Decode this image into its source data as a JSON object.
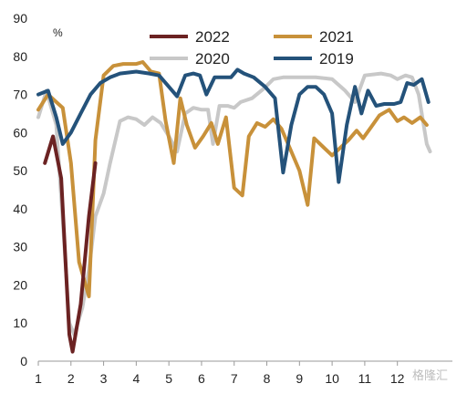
{
  "chart_data": {
    "type": "line",
    "title": "",
    "xlabel": "",
    "ylabel": "",
    "unit": "%",
    "xlim": [
      1,
      13
    ],
    "ylim": [
      0,
      90
    ],
    "x_ticks": [
      1,
      2,
      3,
      4,
      5,
      6,
      7,
      8,
      9,
      10,
      11,
      12
    ],
    "x_tick_labels": [
      "1",
      "2",
      "3",
      "4",
      "5",
      "6",
      "7",
      "8",
      "9",
      "10",
      "11",
      "12"
    ],
    "y_ticks": [
      0,
      10,
      20,
      30,
      40,
      50,
      60,
      70,
      80,
      90
    ],
    "y_tick_labels": [
      "0",
      "10",
      "20",
      "30",
      "40",
      "50",
      "60",
      "70",
      "80",
      "90"
    ],
    "legend_position": "top",
    "series": [
      {
        "name": "2022",
        "color": "#6b2222",
        "points": [
          [
            1.2,
            52
          ],
          [
            1.45,
            59
          ],
          [
            1.7,
            48
          ],
          [
            1.95,
            7
          ],
          [
            2.05,
            2.5
          ],
          [
            2.3,
            15
          ],
          [
            2.55,
            38
          ],
          [
            2.75,
            52
          ]
        ]
      },
      {
        "name": "2021",
        "color": "#c8913a",
        "points": [
          [
            1.0,
            66
          ],
          [
            1.3,
            70
          ],
          [
            1.55,
            68
          ],
          [
            1.75,
            66.5
          ],
          [
            2.0,
            52
          ],
          [
            2.25,
            26
          ],
          [
            2.55,
            17
          ],
          [
            2.75,
            58
          ],
          [
            3.0,
            75
          ],
          [
            3.3,
            77.5
          ],
          [
            3.6,
            78
          ],
          [
            4.0,
            78
          ],
          [
            4.2,
            78.5
          ],
          [
            4.45,
            76
          ],
          [
            4.7,
            75.5
          ],
          [
            4.9,
            63
          ],
          [
            5.15,
            52
          ],
          [
            5.35,
            69
          ],
          [
            5.55,
            62
          ],
          [
            5.8,
            56
          ],
          [
            6.05,
            59
          ],
          [
            6.3,
            62.5
          ],
          [
            6.5,
            57
          ],
          [
            6.75,
            64
          ],
          [
            7.0,
            45.5
          ],
          [
            7.25,
            43.5
          ],
          [
            7.45,
            59
          ],
          [
            7.7,
            62.5
          ],
          [
            7.95,
            61.5
          ],
          [
            8.2,
            63.5
          ],
          [
            8.45,
            61
          ],
          [
            8.7,
            56
          ],
          [
            9.0,
            50
          ],
          [
            9.25,
            41
          ],
          [
            9.45,
            58.5
          ],
          [
            9.75,
            56
          ],
          [
            10.0,
            54
          ],
          [
            10.25,
            56
          ],
          [
            10.5,
            58
          ],
          [
            10.75,
            60.5
          ],
          [
            10.95,
            58.5
          ],
          [
            11.2,
            61.5
          ],
          [
            11.45,
            64.5
          ],
          [
            11.75,
            66
          ],
          [
            12.0,
            63
          ],
          [
            12.2,
            64
          ],
          [
            12.45,
            62.5
          ],
          [
            12.7,
            64
          ],
          [
            12.9,
            62
          ]
        ]
      },
      {
        "name": "2020",
        "color": "#c8c8c8",
        "points": [
          [
            1.0,
            64
          ],
          [
            1.25,
            71
          ],
          [
            1.55,
            62
          ],
          [
            1.75,
            37
          ],
          [
            1.95,
            10
          ],
          [
            2.1,
            7
          ],
          [
            2.35,
            14
          ],
          [
            2.55,
            24
          ],
          [
            2.75,
            38
          ],
          [
            3.0,
            44
          ],
          [
            3.2,
            52
          ],
          [
            3.5,
            63
          ],
          [
            3.75,
            64
          ],
          [
            4.0,
            63.5
          ],
          [
            4.25,
            62
          ],
          [
            4.5,
            64
          ],
          [
            4.75,
            62.5
          ],
          [
            5.0,
            59
          ],
          [
            5.25,
            55
          ],
          [
            5.5,
            65
          ],
          [
            5.75,
            66.5
          ],
          [
            6.0,
            66
          ],
          [
            6.2,
            66
          ],
          [
            6.35,
            57
          ],
          [
            6.55,
            67
          ],
          [
            6.8,
            67
          ],
          [
            7.0,
            66.5
          ],
          [
            7.2,
            68
          ],
          [
            7.55,
            69
          ],
          [
            7.9,
            71.5
          ],
          [
            8.2,
            74
          ],
          [
            8.5,
            74.5
          ],
          [
            9.0,
            74.5
          ],
          [
            9.5,
            74.5
          ],
          [
            10.0,
            74
          ],
          [
            10.4,
            71
          ],
          [
            10.7,
            68
          ],
          [
            11.0,
            75
          ],
          [
            11.5,
            75.5
          ],
          [
            11.8,
            75
          ],
          [
            12.0,
            74
          ],
          [
            12.25,
            75
          ],
          [
            12.45,
            74.5
          ],
          [
            12.65,
            70
          ],
          [
            12.9,
            57
          ],
          [
            13.0,
            55
          ]
        ]
      },
      {
        "name": "2019",
        "color": "#24527a",
        "points": [
          [
            1.0,
            70
          ],
          [
            1.3,
            71
          ],
          [
            1.55,
            64
          ],
          [
            1.75,
            57
          ],
          [
            2.0,
            60
          ],
          [
            2.3,
            65
          ],
          [
            2.6,
            70
          ],
          [
            2.9,
            73
          ],
          [
            3.2,
            74.5
          ],
          [
            3.5,
            75.5
          ],
          [
            4.0,
            76
          ],
          [
            4.4,
            75.5
          ],
          [
            4.7,
            75
          ],
          [
            5.0,
            72
          ],
          [
            5.25,
            69.5
          ],
          [
            5.5,
            75
          ],
          [
            5.75,
            75.5
          ],
          [
            5.95,
            75
          ],
          [
            6.15,
            70
          ],
          [
            6.4,
            74.5
          ],
          [
            6.65,
            74.5
          ],
          [
            6.9,
            74.5
          ],
          [
            7.1,
            76.5
          ],
          [
            7.3,
            75.5
          ],
          [
            7.6,
            74.5
          ],
          [
            7.95,
            72
          ],
          [
            8.25,
            69
          ],
          [
            8.5,
            49.5
          ],
          [
            8.75,
            62
          ],
          [
            9.0,
            70
          ],
          [
            9.25,
            72
          ],
          [
            9.5,
            72
          ],
          [
            9.75,
            70
          ],
          [
            10.0,
            65
          ],
          [
            10.2,
            47
          ],
          [
            10.45,
            62
          ],
          [
            10.7,
            72
          ],
          [
            10.9,
            65
          ],
          [
            11.1,
            71
          ],
          [
            11.35,
            67
          ],
          [
            11.6,
            67.5
          ],
          [
            11.9,
            67.5
          ],
          [
            12.1,
            68
          ],
          [
            12.3,
            73
          ],
          [
            12.5,
            72.5
          ],
          [
            12.75,
            74
          ],
          [
            12.95,
            68
          ]
        ]
      }
    ]
  },
  "watermark": "格隆汇"
}
